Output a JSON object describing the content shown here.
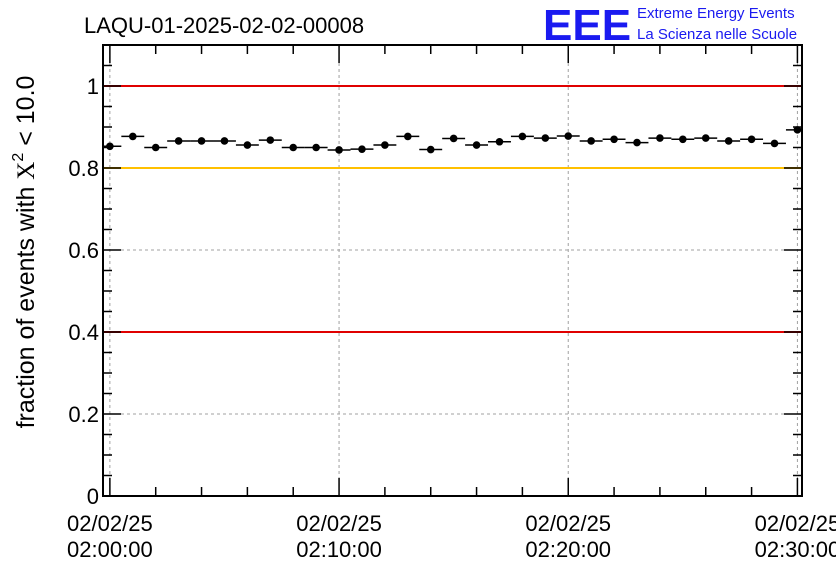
{
  "header": {
    "run_id": "LAQU-01-2025-02-02-00008",
    "logo": {
      "mark": "EEE",
      "line1": "Extreme Energy Events",
      "line2": "La Scienza nelle Scuole",
      "color": "#1a1af0"
    }
  },
  "chart_data": {
    "type": "scatter",
    "title": "LAQU-01-2025-02-02-00008",
    "ylabel_prefix": "fraction of events with ",
    "ylabel_symbol": "X",
    "ylabel_sup": "2",
    "ylabel_suffix": " < 10.0",
    "ylim": [
      0,
      1.1
    ],
    "yticks": [
      0,
      0.2,
      0.4,
      0.6,
      0.8,
      1
    ],
    "ytick_labels": [
      "0",
      "0.2",
      "0.4",
      "0.6",
      "0.8",
      "1"
    ],
    "xlim_minutes": [
      -0.3,
      30.2
    ],
    "xticks_minutes": [
      0,
      10,
      20,
      30
    ],
    "xtick_labels": [
      {
        "date": "02/02/25",
        "time": "02:00:00"
      },
      {
        "date": "02/02/25",
        "time": "02:10:00"
      },
      {
        "date": "02/02/25",
        "time": "02:20:00"
      },
      {
        "date": "02/02/25",
        "time": "02:30:00"
      }
    ],
    "grid": true,
    "reference_lines": [
      {
        "y": 1.0,
        "color": "#e00000"
      },
      {
        "y": 0.8,
        "color": "#ffc000"
      },
      {
        "y": 0.4,
        "color": "#e00000"
      }
    ],
    "series": [
      {
        "name": "fraction",
        "bin_width_minutes": 1,
        "x_minutes": [
          0,
          1,
          2,
          3,
          4,
          5,
          6,
          7,
          8,
          9,
          10,
          11,
          12,
          13,
          14,
          15,
          16,
          17,
          18,
          19,
          20,
          21,
          22,
          23,
          24,
          25,
          26,
          27,
          28,
          29,
          30
        ],
        "values": [
          0.853,
          0.877,
          0.85,
          0.866,
          0.866,
          0.866,
          0.856,
          0.868,
          0.85,
          0.85,
          0.844,
          0.846,
          0.856,
          0.877,
          0.845,
          0.872,
          0.856,
          0.864,
          0.877,
          0.873,
          0.878,
          0.866,
          0.87,
          0.862,
          0.873,
          0.87,
          0.873,
          0.866,
          0.87,
          0.86,
          0.893
        ]
      }
    ]
  }
}
